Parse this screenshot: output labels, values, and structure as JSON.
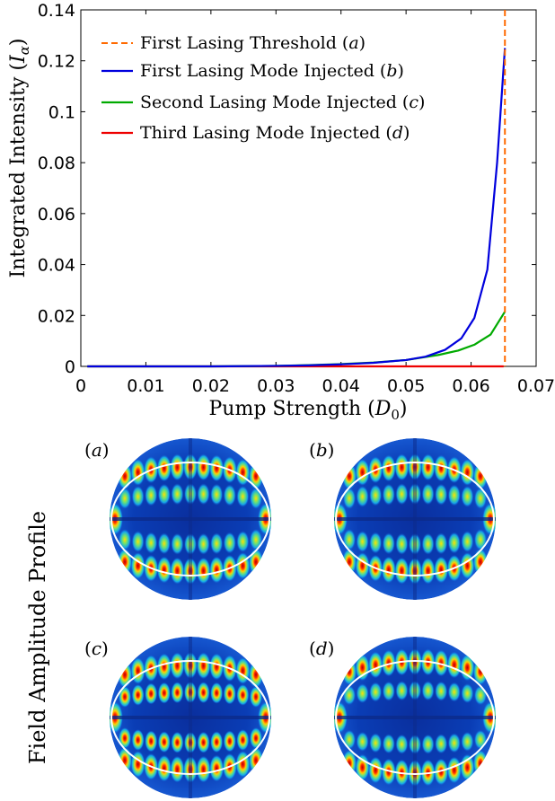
{
  "chart_data": {
    "type": "line",
    "xlabel": "Pump Strength",
    "xlabel_symbol": "D",
    "xlabel_subscript": "0",
    "ylabel": "Integrated Intensity",
    "ylabel_symbol": "I",
    "ylabel_subscript": "α",
    "xlim": [
      0,
      0.07
    ],
    "ylim": [
      0,
      0.14
    ],
    "x_ticks": [
      0,
      0.01,
      0.02,
      0.03,
      0.04,
      0.05,
      0.06,
      0.07
    ],
    "x_tick_labels": [
      "0",
      "0.01",
      "0.02",
      "0.03",
      "0.04",
      "0.05",
      "0.06",
      "0.07"
    ],
    "y_ticks": [
      0,
      0.02,
      0.04,
      0.06,
      0.08,
      0.1,
      0.12,
      0.14
    ],
    "y_tick_labels": [
      "0",
      "0.02",
      "0.04",
      "0.06",
      "0.08",
      "0.1",
      "0.12",
      "0.14"
    ],
    "grid": false,
    "legend_position": "top-left",
    "threshold": {
      "name": "First Lasing Threshold",
      "tag": "a",
      "x": 0.0652,
      "color": "#ff6a00"
    },
    "series": [
      {
        "name": "First Lasing Mode Injected",
        "tag": "b",
        "color": "#0000dd",
        "x": [
          0.001,
          0.01,
          0.02,
          0.03,
          0.035,
          0.04,
          0.045,
          0.05,
          0.053,
          0.056,
          0.0585,
          0.0605,
          0.0625,
          0.064,
          0.0652
        ],
        "y": [
          0,
          0,
          0,
          0.0002,
          0.0004,
          0.0008,
          0.0014,
          0.0025,
          0.0038,
          0.0065,
          0.011,
          0.019,
          0.038,
          0.08,
          0.125
        ]
      },
      {
        "name": "Second Lasing Mode Injected",
        "tag": "c",
        "color": "#00aa00",
        "x": [
          0.001,
          0.01,
          0.02,
          0.03,
          0.035,
          0.04,
          0.045,
          0.05,
          0.055,
          0.058,
          0.0605,
          0.063,
          0.0652
        ],
        "y": [
          0,
          0,
          0,
          0.0002,
          0.0005,
          0.0009,
          0.0015,
          0.0025,
          0.0045,
          0.0062,
          0.0085,
          0.0125,
          0.0215
        ]
      },
      {
        "name": "Third Lasing Mode Injected",
        "tag": "d",
        "color": "#ee0000",
        "x": [
          0.001,
          0.065
        ],
        "y": [
          0,
          0
        ]
      }
    ]
  },
  "field_profile": {
    "axis_label": "Field Amplitude Profile",
    "panels": [
      {
        "tag": "a"
      },
      {
        "tag": "b"
      },
      {
        "tag": "c"
      },
      {
        "tag": "d"
      }
    ]
  }
}
